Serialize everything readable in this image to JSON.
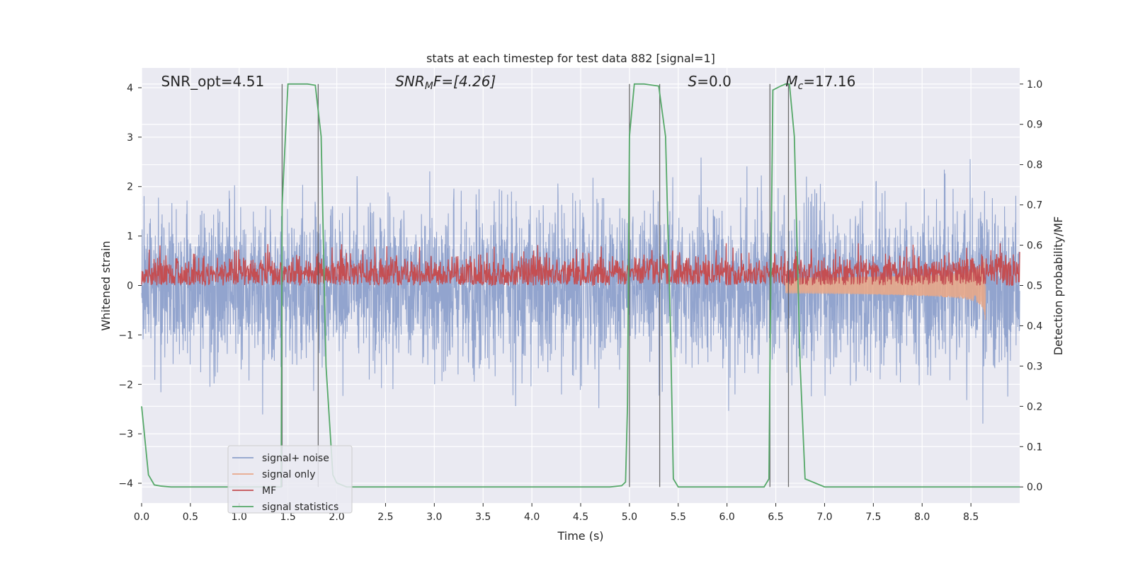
{
  "chart_data": {
    "type": "line",
    "title": "stats at each timestep for test data 882 [signal=1]",
    "xlabel": "Time (s)",
    "ylabel_left": "Whitened strain",
    "ylabel_right": "Detection probability/MF",
    "xlim": [
      0.0,
      9.0
    ],
    "ylim_left": [
      -4.4,
      4.4
    ],
    "ylim_right": [
      -0.04,
      1.04
    ],
    "x_ticks": [
      "0.0",
      "0.5",
      "1.0",
      "1.5",
      "2.0",
      "2.5",
      "3.0",
      "3.5",
      "4.0",
      "4.5",
      "5.0",
      "5.5",
      "6.0",
      "6.5",
      "7.0",
      "7.5",
      "8.0",
      "8.5"
    ],
    "y_ticks_left": [
      "−4",
      "−3",
      "−2",
      "−1",
      "0",
      "1",
      "2",
      "3",
      "4"
    ],
    "y_ticks_right": [
      "0.0",
      "0.1",
      "0.2",
      "0.3",
      "0.4",
      "0.5",
      "0.6",
      "0.7",
      "0.8",
      "0.9",
      "1.0"
    ],
    "grid": true,
    "legend_position": "lower-left",
    "annotations": [
      {
        "base": "SNR_opt=4.51",
        "sub": "",
        "rest": "",
        "x": 0.2
      },
      {
        "base": "SNR",
        "sub": "M",
        "rest": "F=[4.26]",
        "x": 2.6
      },
      {
        "base": "S",
        "sub": "",
        "rest": "=0.0",
        "x": 5.6
      },
      {
        "base": "M",
        "sub": "c",
        "rest": "=17.16",
        "x": 6.6
      }
    ],
    "vertical_lines": [
      1.44,
      1.81,
      5.0,
      5.31,
      6.44,
      6.63
    ],
    "series": [
      {
        "name": "signal+ noise",
        "color": "#8da0cb",
        "description": "noisy whitened strain, approx. Gaussian noise with sigma 0.8, peaks up to about ±3.7",
        "sigma": 0.8
      },
      {
        "name": "signal only",
        "color": "#e8a88a",
        "chirp_end": 8.65,
        "chirp_peak_amplitude": 0.9
      },
      {
        "name": "MF",
        "color": "#c44e52",
        "baseline": 0.5,
        "typical_range": [
          0.5,
          0.58
        ]
      },
      {
        "name": "signal statistics",
        "color": "#55a868",
        "x": [
          0.0,
          0.07,
          0.13,
          0.2,
          0.3,
          0.5,
          1.0,
          1.43,
          1.44,
          1.5,
          1.6,
          1.7,
          1.78,
          1.84,
          1.89,
          1.96,
          2.0,
          2.05,
          2.1,
          3.0,
          4.0,
          4.8,
          4.92,
          4.96,
          4.98,
          5.0,
          5.05,
          5.15,
          5.3,
          5.37,
          5.42,
          5.45,
          5.5,
          6.0,
          6.38,
          6.43,
          6.44,
          6.47,
          6.55,
          6.6,
          6.64,
          6.69,
          6.75,
          6.8,
          7.0,
          8.0,
          9.0
        ],
        "y": [
          0.2,
          0.03,
          0.005,
          0.002,
          0.0,
          0.0,
          0.0,
          0.0,
          0.7,
          1.0,
          1.0,
          1.0,
          0.997,
          0.87,
          0.3,
          0.03,
          0.01,
          0.005,
          0.0,
          0.0,
          0.0,
          0.0,
          0.003,
          0.012,
          0.2,
          0.87,
          1.0,
          1.0,
          0.995,
          0.87,
          0.4,
          0.02,
          0.0,
          0.0,
          0.0,
          0.02,
          0.3,
          0.985,
          0.995,
          1.0,
          1.0,
          0.87,
          0.3,
          0.02,
          0.0,
          0.0,
          0.0
        ]
      }
    ]
  }
}
